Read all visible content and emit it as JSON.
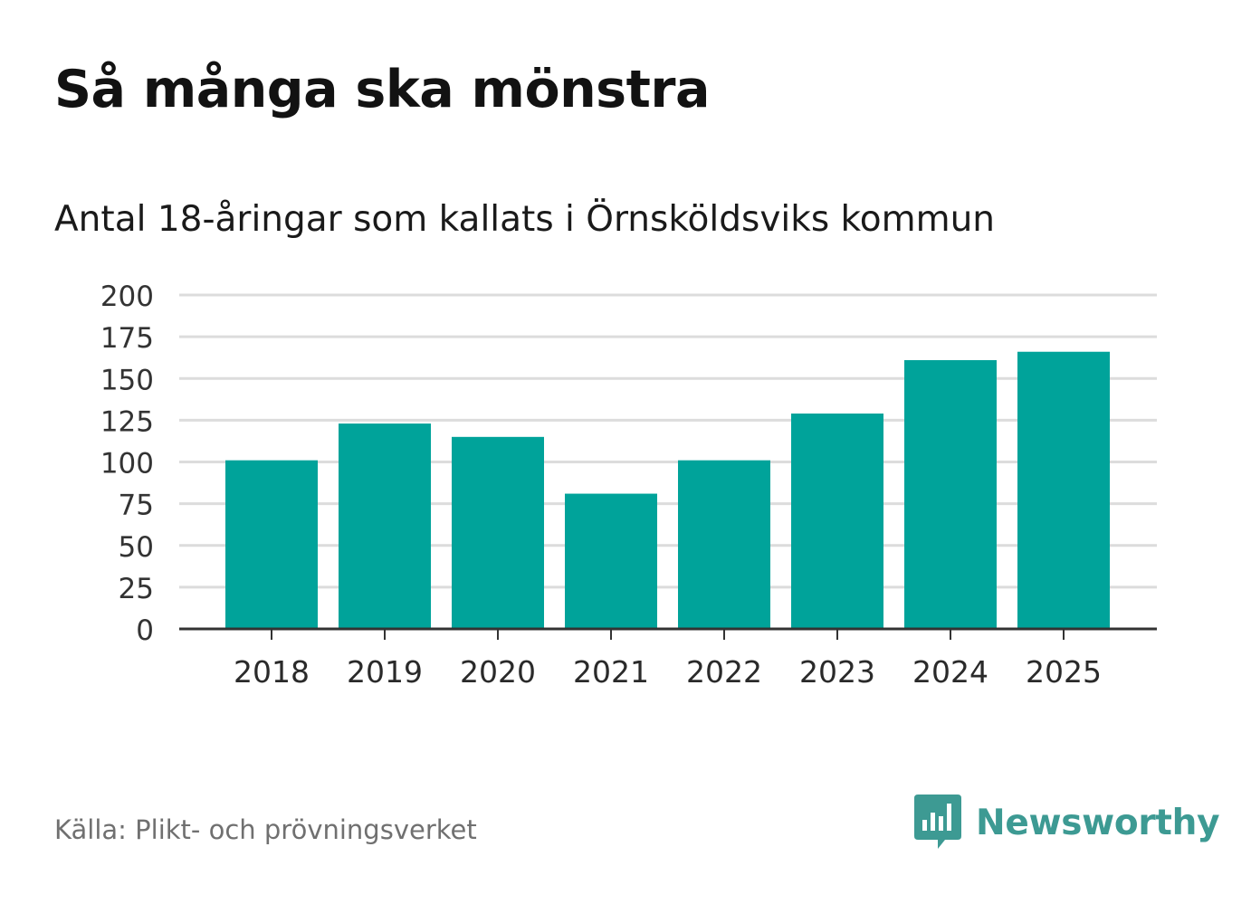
{
  "chart_data": {
    "type": "bar",
    "title": "Så många ska mönstra",
    "subtitle": "Antal 18-åringar som kallats i Örnsköldsviks kommun",
    "categories": [
      "2018",
      "2019",
      "2020",
      "2021",
      "2022",
      "2023",
      "2024",
      "2025"
    ],
    "values": [
      101,
      123,
      115,
      81,
      101,
      129,
      161,
      166
    ],
    "ylim": [
      0,
      200
    ],
    "yticks": [
      "0",
      "25",
      "50",
      "75",
      "100",
      "125",
      "150",
      "175",
      "200"
    ],
    "grid": true,
    "xlabel": "",
    "ylabel": "",
    "bar_color": "#00a39a",
    "grid_color": "#dcdcdc",
    "axis_color": "#333333"
  },
  "footer": {
    "source": "Källa: Plikt- och prövningsverket",
    "brand": "Newsworthy",
    "brand_icon": "newsworthy-logo-icon",
    "brand_color": "#3d9a93"
  }
}
